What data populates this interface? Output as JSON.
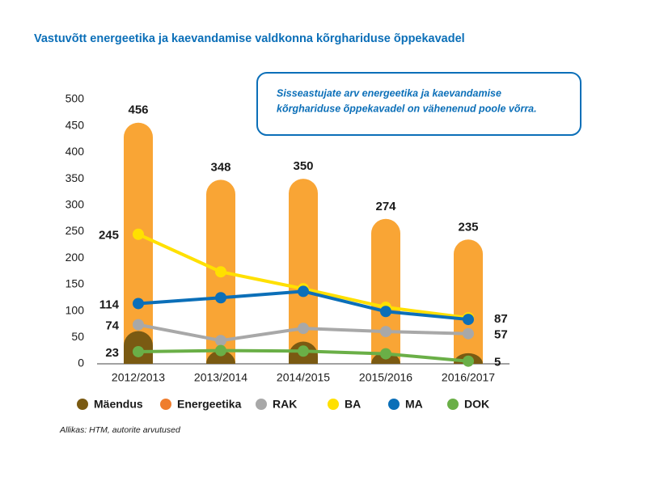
{
  "chart_data": {
    "type": "bar-line",
    "title": "Vastuvõtt energeetika ja kaevandamise valdkonna kõrghariduse õppekavadel",
    "annotation": [
      "Sisseastujate arv energeetika ja kaevandamise",
      "kõrghariduse õppekavadel on vähenenud poole võrra."
    ],
    "source": "Allikas: HTM, autorite arvutused",
    "categories": [
      "2012/2013",
      "2013/2014",
      "2014/2015",
      "2015/2016",
      "2016/2017"
    ],
    "ylim": [
      0,
      500
    ],
    "yticks": [
      0,
      50,
      100,
      150,
      200,
      250,
      300,
      350,
      400,
      450,
      500
    ],
    "series": [
      {
        "name": "Mäendus",
        "kind": "bar",
        "color": "#7a5a12",
        "values": [
          62,
          25,
          42,
          22,
          20
        ]
      },
      {
        "name": "Energeetika",
        "kind": "bar",
        "color": "#f9a535",
        "legend_color": "#ef7d2e",
        "values": [
          456,
          348,
          350,
          274,
          235
        ],
        "show_labels": true
      },
      {
        "name": "RAK",
        "kind": "line",
        "color": "#a8a8a8",
        "values": [
          74,
          44,
          67,
          61,
          57
        ],
        "value_labels": [
          "74",
          null,
          null,
          null,
          "57"
        ]
      },
      {
        "name": "BA",
        "kind": "line",
        "color": "#ffe000",
        "values": [
          245,
          174,
          142,
          107,
          87
        ],
        "value_labels": [
          "245",
          null,
          null,
          null,
          "87"
        ]
      },
      {
        "name": "MA",
        "kind": "line",
        "color": "#0b6fb8",
        "values": [
          114,
          125,
          137,
          99,
          84
        ],
        "value_labels": [
          "114",
          null,
          null,
          null,
          null
        ]
      },
      {
        "name": "DOK",
        "kind": "line",
        "color": "#6aaf47",
        "values": [
          23,
          25,
          24,
          19,
          5
        ],
        "value_labels": [
          "23",
          null,
          null,
          null,
          "5"
        ]
      }
    ]
  }
}
